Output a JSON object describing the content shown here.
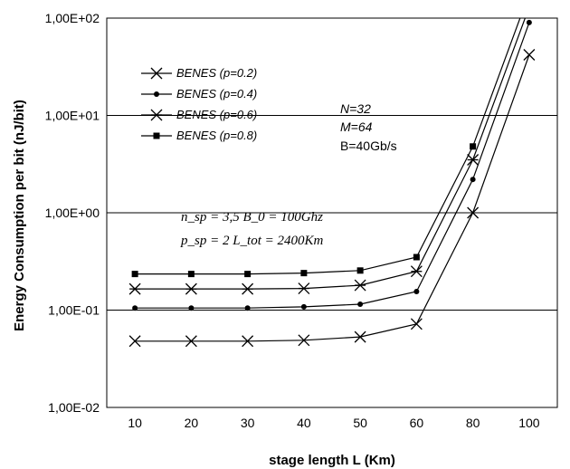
{
  "chart_data": {
    "type": "line",
    "title": "",
    "xlabel": "stage length L (Km)",
    "ylabel": "Energy Consumption per bit (nJ/bit)",
    "x": [
      10,
      20,
      30,
      40,
      50,
      60,
      80,
      100
    ],
    "x_tick_labels": [
      "10",
      "20",
      "30",
      "40",
      "50",
      "60",
      "80",
      "100"
    ],
    "y_scale": "log",
    "ylim": [
      0.01,
      100
    ],
    "y_tick_values": [
      0.01,
      0.1,
      1,
      10,
      100
    ],
    "y_tick_labels": [
      "1,00E-02",
      "1,00E-01",
      "1,00E+00",
      "1,00E+01",
      "1,00E+02"
    ],
    "grid": "horizontal",
    "legend_position": "top-left",
    "series": [
      {
        "name": "BENES (p=0.2)",
        "marker": "x",
        "values": [
          0.048,
          0.048,
          0.048,
          0.049,
          0.053,
          0.072,
          1.0,
          42
        ]
      },
      {
        "name": "BENES (p=0.4)",
        "marker": "circle",
        "values": [
          0.105,
          0.105,
          0.105,
          0.108,
          0.115,
          0.155,
          2.2,
          90
        ]
      },
      {
        "name": "BENES (p=0.6)",
        "marker": "asterisk",
        "values": [
          0.165,
          0.165,
          0.165,
          0.167,
          0.18,
          0.25,
          3.5,
          130
        ]
      },
      {
        "name": "BENES (p=0.8)",
        "marker": "square",
        "values": [
          0.235,
          0.235,
          0.235,
          0.24,
          0.255,
          0.35,
          4.8,
          180
        ]
      }
    ],
    "annotations": {
      "params": [
        "N=32",
        "M=64",
        "B=40Gb/s"
      ],
      "formulas": [
        "n_sp = 3,5   B_0 = 100Ghz",
        "p_sp = 2   L_tot = 2400Km"
      ]
    }
  }
}
